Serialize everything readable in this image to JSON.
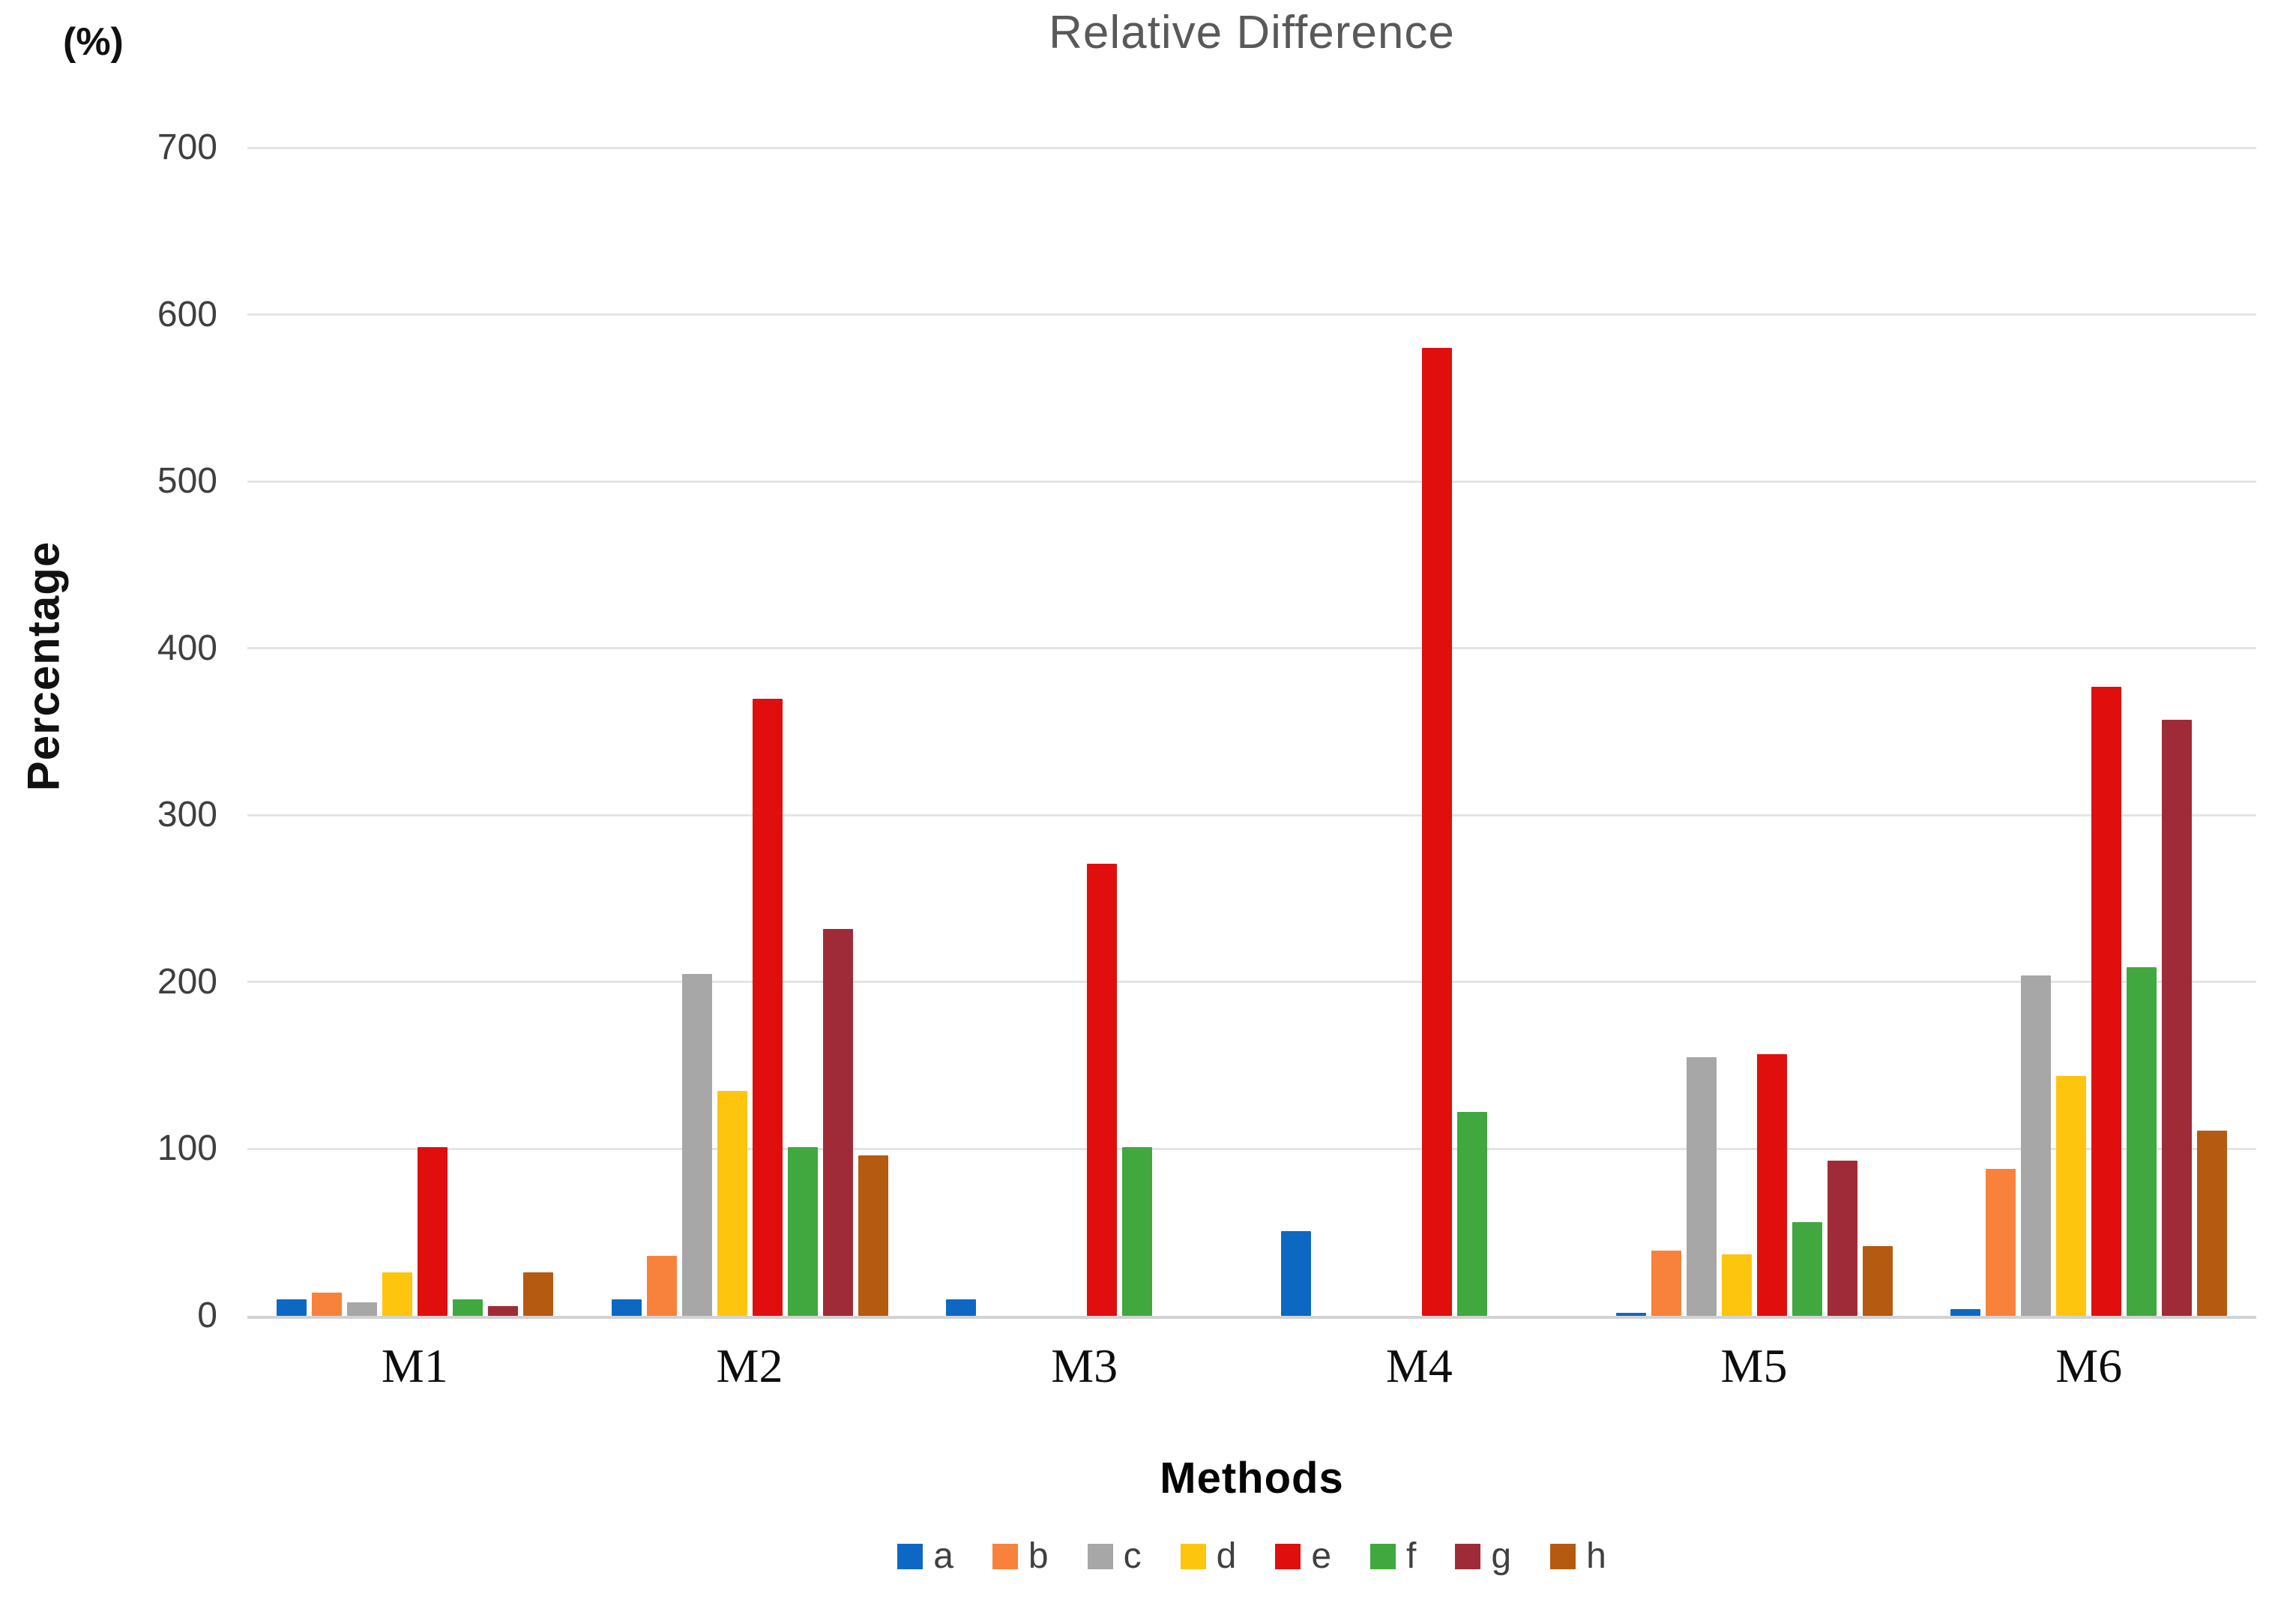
{
  "title": "Relative Difference",
  "y_axis": {
    "unit_label": "(%)",
    "axis_label": "Percentage",
    "ticks": [
      700,
      600,
      500,
      400,
      300,
      200,
      100,
      0
    ]
  },
  "x_axis": {
    "axis_label": "Methods"
  },
  "legend": [
    {
      "label": "a",
      "color": "#0d68c3"
    },
    {
      "label": "b",
      "color": "#f8823b"
    },
    {
      "label": "c",
      "color": "#a7a7a7"
    },
    {
      "label": "d",
      "color": "#fec50f"
    },
    {
      "label": "e",
      "color": "#e10e0e"
    },
    {
      "label": "f",
      "color": "#40a83f"
    },
    {
      "label": "g",
      "color": "#a02b38"
    },
    {
      "label": "h",
      "color": "#b55a11"
    }
  ],
  "chart_data": {
    "type": "bar",
    "title": "Relative Difference",
    "xlabel": "Methods",
    "ylabel": "Percentage",
    "ylim": [
      0,
      700
    ],
    "grid": true,
    "legend_position": "bottom",
    "categories": [
      "M1",
      "M2",
      "M3",
      "M4",
      "M5",
      "M6"
    ],
    "series": [
      {
        "name": "a",
        "color": "#0d68c3",
        "values": [
          10,
          10,
          10,
          51,
          2,
          4
        ]
      },
      {
        "name": "b",
        "color": "#f8823b",
        "values": [
          14,
          36,
          0,
          0,
          39,
          88
        ]
      },
      {
        "name": "c",
        "color": "#a7a7a7",
        "values": [
          8,
          205,
          0,
          0,
          155,
          204
        ]
      },
      {
        "name": "d",
        "color": "#fec50f",
        "values": [
          26,
          135,
          0,
          0,
          37,
          144
        ]
      },
      {
        "name": "e",
        "color": "#e10e0e",
        "values": [
          101,
          370,
          271,
          580,
          157,
          377
        ]
      },
      {
        "name": "f",
        "color": "#40a83f",
        "values": [
          10,
          101,
          101,
          122,
          56,
          209
        ]
      },
      {
        "name": "g",
        "color": "#a02b38",
        "values": [
          6,
          232,
          0,
          0,
          93,
          357
        ]
      },
      {
        "name": "h",
        "color": "#b55a11",
        "values": [
          26,
          96,
          0,
          0,
          42,
          111
        ]
      }
    ]
  }
}
